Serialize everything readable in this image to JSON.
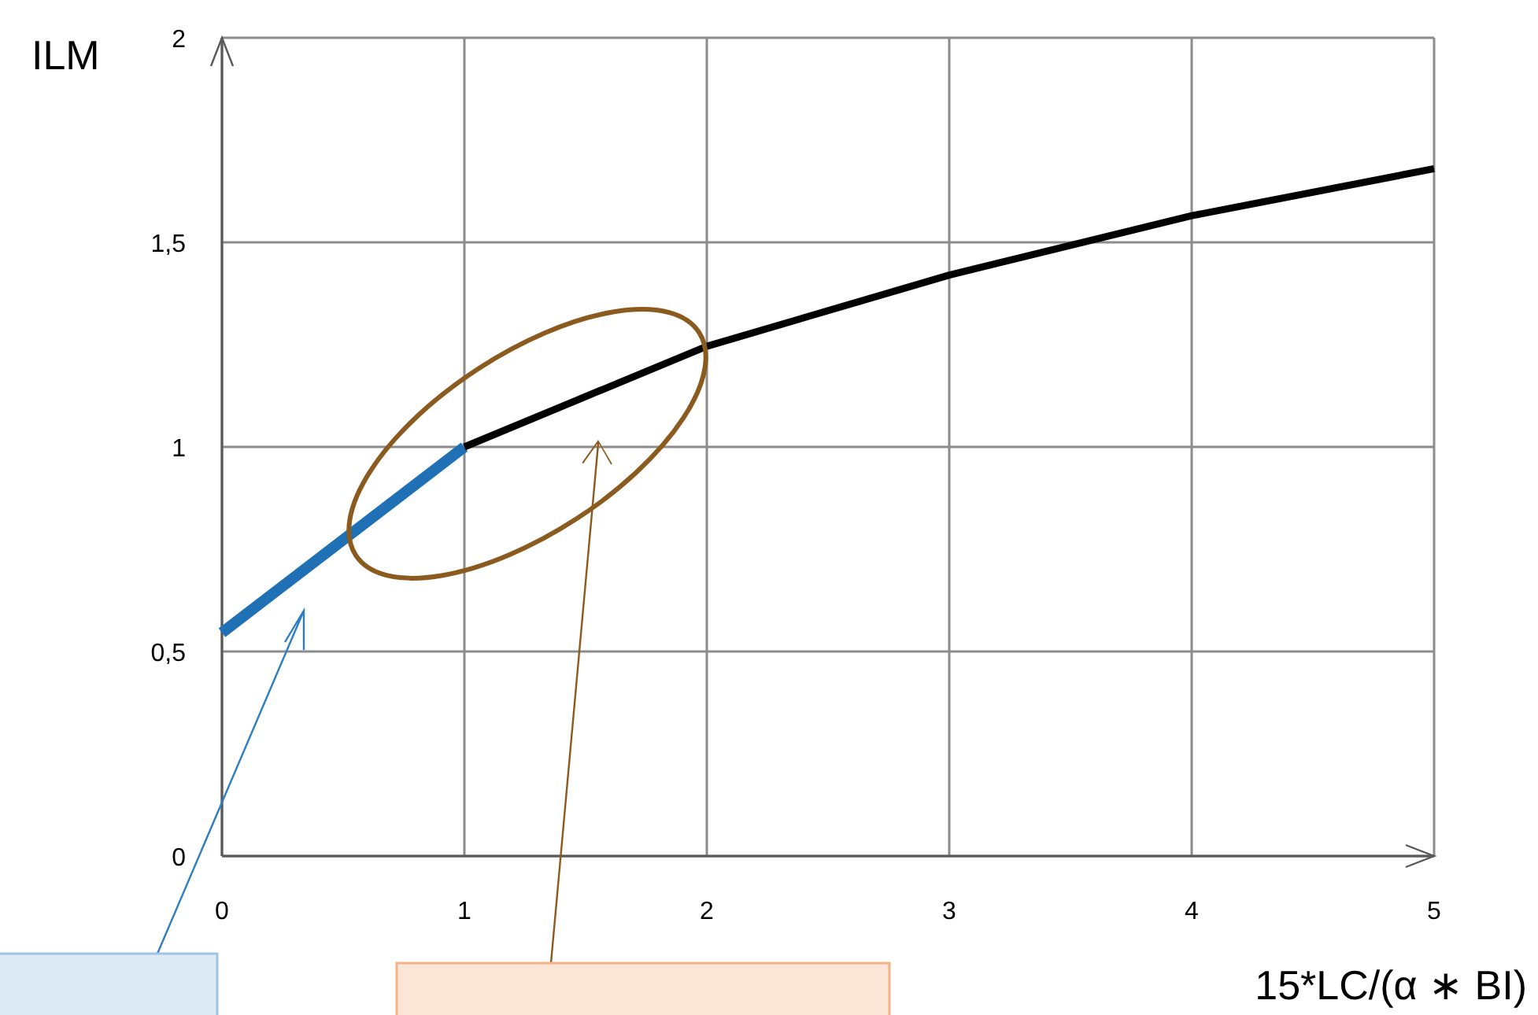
{
  "chart_data": {
    "type": "line",
    "xlabel": "15*LC/(α ∗ BI)",
    "ylabel": "ILM",
    "xlim": [
      0,
      5
    ],
    "xticks": [
      0,
      1,
      2,
      3,
      4,
      5
    ],
    "ylim": [
      0,
      2
    ],
    "yticks": [
      0,
      {
        "value": 0.5,
        "label": "0,5"
      },
      1,
      {
        "value": 1.5,
        "label": "1,5"
      },
      2
    ],
    "grid": true,
    "marker": "none",
    "line_style": "solid",
    "series": [
      {
        "color": "#1f70b5",
        "x": [
          0,
          1
        ],
        "values": [
          0.546,
          1
        ]
      },
      {
        "color": "#000000",
        "x": [
          1,
          2,
          3,
          4,
          5
        ],
        "values": [
          1,
          1.246,
          1.42,
          1.565,
          1.68
        ]
      }
    ]
  }
}
